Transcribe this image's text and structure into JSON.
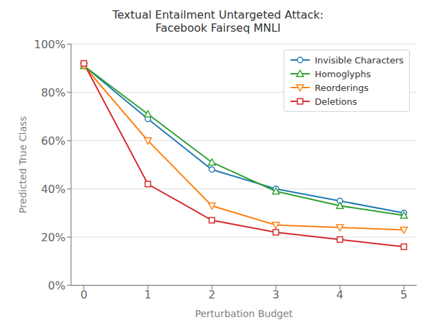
{
  "chart_data": {
    "type": "line",
    "title": "Textual Entailment Untargeted Attack:\nFacebook Fairseq MNLI",
    "xlabel": "Perturbation Budget",
    "ylabel": "Predicted True Class",
    "x": [
      0,
      1,
      2,
      3,
      4,
      5
    ],
    "series": [
      {
        "name": "Invisible Characters",
        "color": "#1f77b4",
        "marker": "circle",
        "values": [
          0.91,
          0.69,
          0.48,
          0.4,
          0.35,
          0.3
        ]
      },
      {
        "name": "Homoglyphs",
        "color": "#2ca02c",
        "marker": "triangle-up",
        "values": [
          0.91,
          0.71,
          0.51,
          0.39,
          0.33,
          0.29
        ]
      },
      {
        "name": "Reorderings",
        "color": "#ff7f0e",
        "marker": "triangle-down",
        "values": [
          0.91,
          0.6,
          0.33,
          0.25,
          0.24,
          0.23
        ]
      },
      {
        "name": "Deletions",
        "color": "#d62728",
        "marker": "square",
        "values": [
          0.92,
          0.42,
          0.27,
          0.22,
          0.19,
          0.16
        ]
      }
    ],
    "xlim": [
      -0.2,
      5.2
    ],
    "xticks": [
      0,
      1,
      2,
      3,
      4,
      5
    ],
    "ylim": [
      0.0,
      1.0
    ],
    "yticks": [
      {
        "value": 0.0,
        "label": "0%"
      },
      {
        "value": 0.2,
        "label": "20%"
      },
      {
        "value": 0.4,
        "label": "40%"
      },
      {
        "value": 0.6,
        "label": "60%"
      },
      {
        "value": 0.8,
        "label": "80%"
      },
      {
        "value": 1.0,
        "label": "100%"
      }
    ],
    "grid": true,
    "legend": "upper right"
  }
}
